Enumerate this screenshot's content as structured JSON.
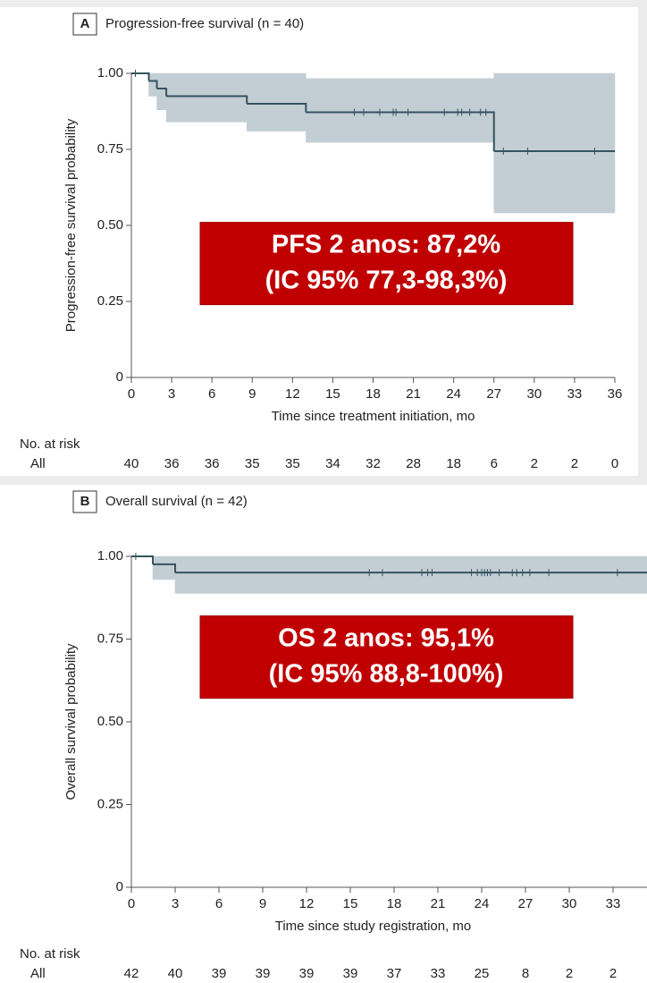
{
  "chart_data": [
    {
      "type": "step",
      "panel_label": "A",
      "title": "Progression-free survival (n = 40)",
      "y_label": "Progression-free survival probability",
      "x_label": "Time since treatment initiation, mo",
      "xlim": [
        0,
        36
      ],
      "xticks": [
        0,
        3,
        6,
        9,
        12,
        15,
        18,
        21,
        24,
        27,
        30,
        33,
        36
      ],
      "ylim": [
        0,
        1
      ],
      "yticks": [
        0,
        0.25,
        {
          "value": 0.5,
          "label": "0.50"
        },
        0.75,
        {
          "value": 1,
          "label": "1.00"
        }
      ],
      "color": "#35535f",
      "ci_color": "#c3ced4",
      "x": [
        0,
        1.3,
        1.9,
        2.6,
        8.6,
        13,
        27,
        36
      ],
      "values": [
        1,
        0.975,
        0.95,
        0.925,
        0.9,
        0.872,
        0.744,
        0.744
      ],
      "ci_lower": [
        1,
        0.925,
        0.88,
        0.84,
        0.81,
        0.773,
        0.541,
        0.541
      ],
      "ci_upper": [
        1,
        1,
        1,
        1,
        1,
        0.983,
        1,
        1
      ],
      "censored_x": [
        0.3,
        16.6,
        17.3,
        18.5,
        19.5,
        19.7,
        20.6,
        23.3,
        24.3,
        24.6,
        25.2,
        26.0,
        26.4,
        27.7,
        29.5,
        34.5
      ],
      "annotation": [
        "PFS 2 anos: 87,2%",
        "(IC 95% 77,3-98,3%)"
      ],
      "risk_table": {
        "title": "No. at risk",
        "group": "All",
        "values": [
          40,
          36,
          36,
          35,
          35,
          34,
          32,
          28,
          18,
          6,
          2,
          2,
          0
        ]
      }
    },
    {
      "type": "step",
      "panel_label": "B",
      "title": "Overall survival (n = 42)",
      "y_label": "Overall survival probability",
      "x_label": "Time since study registration, mo",
      "xlim": [
        0,
        36
      ],
      "xticks": [
        0,
        3,
        6,
        9,
        12,
        15,
        18,
        21,
        24,
        27,
        30,
        33
      ],
      "ylim": [
        0,
        1
      ],
      "yticks": [
        0,
        0.25,
        {
          "value": 0.5,
          "label": "0.50"
        },
        0.75,
        {
          "value": 1,
          "label": "1.00"
        }
      ],
      "color": "#35535f",
      "ci_color": "#c3ced4",
      "x": [
        0,
        1.47,
        3,
        36
      ],
      "values": [
        1,
        0.976,
        0.951,
        0.951
      ],
      "ci_lower": [
        1,
        0.93,
        0.888,
        0.888
      ],
      "ci_upper": [
        1,
        1,
        1,
        1
      ],
      "censored_x": [
        0.3,
        16.3,
        17.2,
        19.9,
        20.3,
        20.6,
        23.3,
        23.7,
        24.0,
        24.2,
        24.4,
        24.6,
        25.2,
        26.1,
        26.4,
        26.8,
        27.3,
        28.6,
        33.3
      ],
      "annotation": [
        "OS 2 anos: 95,1%",
        "(IC 95% 88,8-100%)"
      ],
      "risk_table": {
        "title": "No. at risk",
        "group": "All",
        "values": [
          42,
          40,
          39,
          39,
          39,
          39,
          37,
          33,
          25,
          8,
          2,
          2
        ]
      }
    }
  ]
}
